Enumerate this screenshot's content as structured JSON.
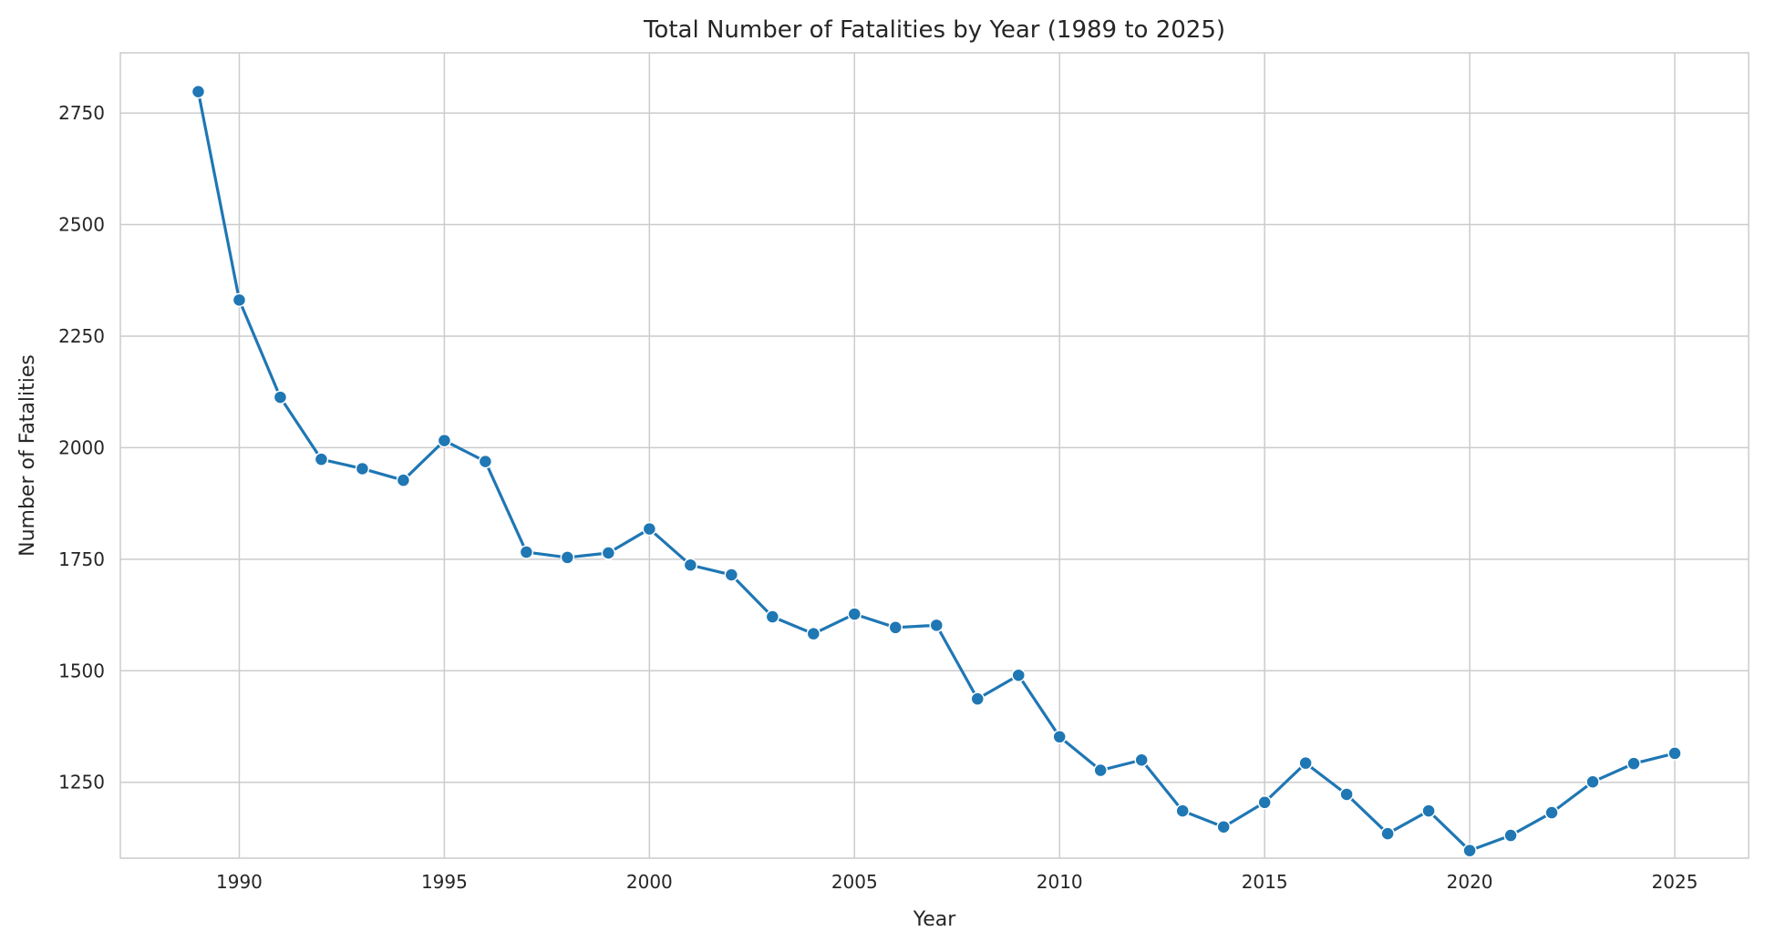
{
  "chart_data": {
    "type": "line",
    "title": "Total Number of Fatalities by Year (1989 to 2025)",
    "xlabel": "Year",
    "ylabel": "Number of Fatalities",
    "xlim": [
      1987.1,
      2026.8
    ],
    "ylim": [
      1080,
      2885
    ],
    "x_ticks": [
      1990,
      1995,
      2000,
      2005,
      2010,
      2015,
      2020,
      2025
    ],
    "y_ticks": [
      1250,
      1500,
      1750,
      2000,
      2250,
      2500,
      2750
    ],
    "grid": true,
    "legend": "none",
    "line_color": "#1f77b4",
    "series": [
      {
        "x": [
          1989,
          1990,
          1991,
          1992,
          1993,
          1994,
          1995,
          1996,
          1997,
          1998,
          1999,
          2000,
          2001,
          2002,
          2003,
          2004,
          2005,
          2006,
          2007,
          2008,
          2009,
          2010,
          2011,
          2012,
          2013,
          2014,
          2015,
          2016,
          2017,
          2018,
          2019,
          2020,
          2021,
          2022,
          2023,
          2024,
          2025
        ],
        "values": [
          2798,
          2331,
          2113,
          1974,
          1953,
          1927,
          2016,
          1969,
          1766,
          1754,
          1764,
          1818,
          1737,
          1715,
          1621,
          1583,
          1627,
          1597,
          1602,
          1437,
          1490,
          1352,
          1277,
          1300,
          1186,
          1150,
          1205,
          1293,
          1223,
          1135,
          1186,
          1097,
          1131,
          1182,
          1251,
          1292,
          1315
        ]
      }
    ]
  }
}
